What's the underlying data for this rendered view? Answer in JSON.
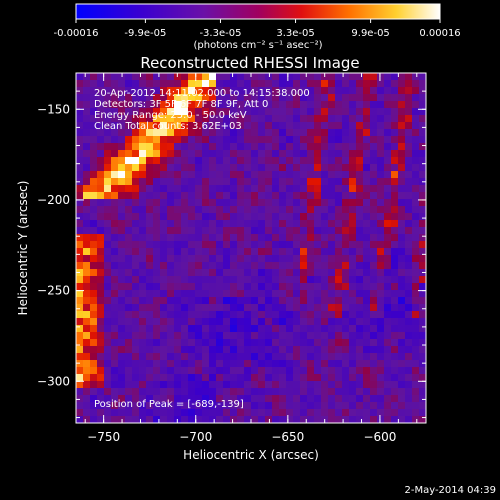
{
  "colorbar": {
    "tick_labels": [
      "-0.00016",
      "-9.9e-05",
      "-3.3e-05",
      "3.3e-05",
      "9.9e-05",
      "0.00016"
    ],
    "tick_values": [
      -0.00016,
      -9.9e-05,
      -3.3e-05,
      3.3e-05,
      9.9e-05,
      0.00016
    ],
    "unit_label": "(photons cm⁻² s⁻¹ asec⁻²)",
    "range": [
      -0.00016,
      0.00016
    ],
    "colors": [
      "#0000ff",
      "#4a00c8",
      "#7a10a0",
      "#c00040",
      "#ff3000",
      "#ff9000",
      "#ffee40",
      "#ffffff"
    ]
  },
  "chart_data": {
    "type": "heatmap",
    "title": "Reconstructed RHESSI Image",
    "xlabel": "Heliocentric X (arcsec)",
    "ylabel": "Heliocentric Y (arcsec)",
    "xlim": [
      -765,
      -575
    ],
    "ylim": [
      -323,
      -130
    ],
    "x_ticks": [
      -750,
      -700,
      -650,
      -600
    ],
    "y_ticks": [
      -150,
      -200,
      -250,
      -300
    ],
    "x_tick_labels": [
      "−750",
      "−700",
      "−650",
      "−600"
    ],
    "y_tick_labels": [
      "−150",
      "−200",
      "−250",
      "−300"
    ],
    "annotations": [
      "20-Apr-2012 14:11:02.000 to 14:15:38.000",
      "Detectors: 3F 5F 6F 7F 8F 9F, Att 0",
      "Energy Range: 25.0 - 50.0 keV",
      "Clean    Total counts: 3.62E+03"
    ],
    "peak_label": "Position of Peak = [-689,-139]",
    "peak_position": [
      -689,
      -139
    ],
    "total_counts": 3620,
    "energy_range_kev": [
      25.0,
      50.0
    ]
  },
  "timestamp": "2-May-2014 04:39"
}
